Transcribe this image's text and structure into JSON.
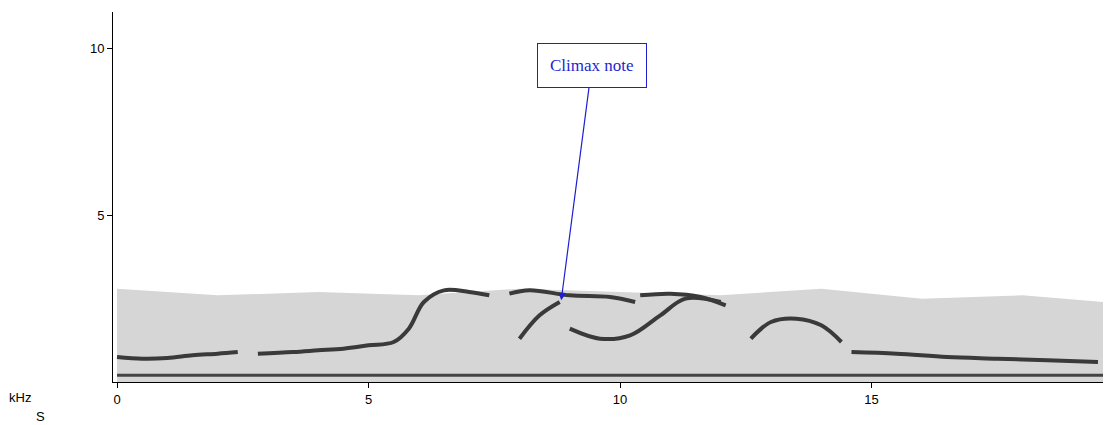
{
  "chart_data": {
    "type": "line",
    "x_label": "S",
    "y_label": "kHz",
    "xlim": [
      -0.08,
      19.6
    ],
    "xticks": [
      0,
      5,
      10,
      15
    ],
    "ylim": [
      0,
      11.1
    ],
    "yticks": [
      5,
      10
    ],
    "grid": false,
    "series": [
      {
        "type": "area",
        "color": "#d6d6d6",
        "x": [
          0,
          2,
          4,
          6,
          8,
          10,
          12,
          14,
          16,
          18,
          19.6
        ],
        "values": [
          2.8,
          2.6,
          2.7,
          2.6,
          2.8,
          2.7,
          2.6,
          2.8,
          2.5,
          2.6,
          2.4
        ]
      },
      {
        "type": "line",
        "color": "#444444",
        "x": [
          0,
          19.6
        ],
        "values": [
          0.2,
          0.2
        ]
      },
      {
        "type": "line",
        "color": "#3a3a3a",
        "x": [
          0,
          0.5,
          1,
          1.5,
          2,
          2.4
        ],
        "values": [
          0.75,
          0.7,
          0.72,
          0.8,
          0.85,
          0.9
        ]
      },
      {
        "type": "line",
        "color": "#3a3a3a",
        "x": [
          2.8,
          3.5,
          4,
          4.5,
          5,
          5.5,
          5.8,
          6.1,
          6.5,
          7,
          7.4
        ],
        "values": [
          0.85,
          0.9,
          0.95,
          1.0,
          1.1,
          1.2,
          1.6,
          2.4,
          2.75,
          2.7,
          2.6
        ]
      },
      {
        "type": "line",
        "color": "#3a3a3a",
        "x": [
          7.8,
          8.2,
          9,
          9.8,
          10.3
        ],
        "values": [
          2.65,
          2.75,
          2.6,
          2.55,
          2.4
        ]
      },
      {
        "type": "line",
        "color": "#3a3a3a",
        "x": [
          8.0,
          8.4,
          8.8
        ],
        "values": [
          1.3,
          2.0,
          2.4
        ]
      },
      {
        "type": "line",
        "color": "#3a3a3a",
        "x": [
          9.0,
          9.6,
          10.2,
          10.8,
          11.3,
          12
        ],
        "values": [
          1.6,
          1.3,
          1.4,
          2.0,
          2.5,
          2.4
        ]
      },
      {
        "type": "line",
        "color": "#3a3a3a",
        "x": [
          10.4,
          11,
          11.6,
          12.1
        ],
        "values": [
          2.6,
          2.65,
          2.55,
          2.3
        ]
      },
      {
        "type": "line",
        "color": "#3a3a3a",
        "x": [
          12.6,
          13,
          13.5,
          14,
          14.4
        ],
        "values": [
          1.3,
          1.8,
          1.9,
          1.7,
          1.2
        ]
      },
      {
        "type": "line",
        "color": "#3a3a3a",
        "x": [
          14.6,
          15.5,
          16.5,
          17.5,
          18.5,
          19.5
        ],
        "values": [
          0.9,
          0.85,
          0.75,
          0.7,
          0.65,
          0.6
        ]
      }
    ],
    "annotations": [
      {
        "text": "Climax note",
        "color": "#1f1fd0",
        "x": 8.83,
        "y": 2.45,
        "text_x": 9.44,
        "text_y": 9.5
      }
    ]
  }
}
